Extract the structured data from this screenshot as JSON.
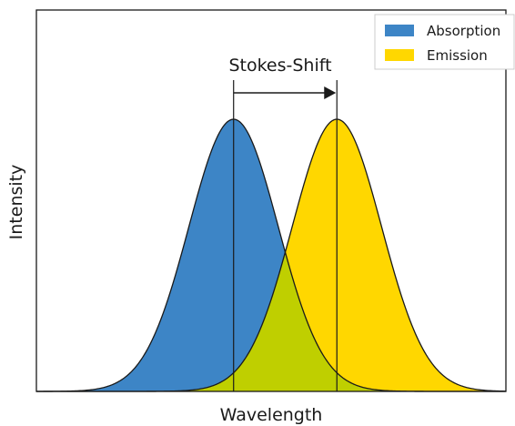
{
  "xlabel": "Wavelength",
  "ylabel": "Intensity",
  "annotation": "Stokes-Shift",
  "legend": {
    "placement": "top-right",
    "items": [
      {
        "label": "Absorption",
        "color": "#3d85c6"
      },
      {
        "label": "Emission",
        "color": "#ffd700"
      }
    ]
  },
  "colors": {
    "absorption": "#3d85c6",
    "emission": "#ffd700",
    "overlap": "#bfcf00",
    "outline": "#1a1a1a"
  },
  "curves": [
    {
      "name": "absorption",
      "center": 0.42,
      "width": 0.095,
      "peak": 1.0
    },
    {
      "name": "emission",
      "center": 0.64,
      "width": 0.095,
      "peak": 1.0
    }
  ],
  "axes": {
    "x_ticks": false,
    "y_ticks": false
  }
}
